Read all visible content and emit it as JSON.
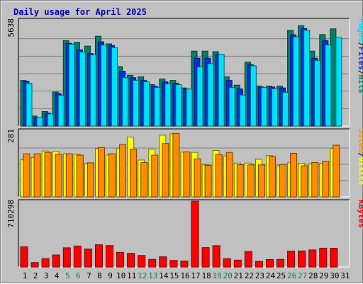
{
  "chart_data": {
    "type": "bar",
    "title": "Daily usage for April 2025",
    "x": [
      "1",
      "2",
      "3",
      "4",
      "5",
      "6",
      "7",
      "8",
      "9",
      "10",
      "11",
      "12",
      "13",
      "14",
      "15",
      "16",
      "17",
      "18",
      "19",
      "20",
      "21",
      "22",
      "23",
      "24",
      "25",
      "26",
      "27",
      "28",
      "29",
      "30",
      "31"
    ],
    "weekend_days": [
      "5",
      "6",
      "12",
      "13",
      "19",
      "20",
      "26",
      "27"
    ],
    "colors": {
      "title": "#0000b0",
      "weekday": "#000000",
      "weekend": "#00806a",
      "hits": "#00806a",
      "files": "#0030e0",
      "pages": "#00e0ff",
      "visits": "#ffff00",
      "sites": "#ff8c00",
      "kbytes": "#ff0000",
      "plot_bg": "#c0c0c0"
    },
    "panels": [
      {
        "name": "requests",
        "max_label": "5638",
        "ymax": 5638,
        "legend": [
          {
            "label": "Pages",
            "color": "#00e0ff"
          },
          {
            "label": "/",
            "color": "#000000"
          },
          {
            "label": "Files",
            "color": "#0030e0"
          },
          {
            "label": "/",
            "color": "#000000"
          },
          {
            "label": "Hits",
            "color": "#00806a"
          }
        ],
        "series": [
          {
            "name": "Hits",
            "color": "#00806a",
            "values": [
              2450,
              540,
              780,
              1830,
              4600,
              4500,
              4300,
              4830,
              4420,
              3200,
              2730,
              2650,
              2230,
              2530,
              2450,
              2050,
              4030,
              4030,
              4000,
              2650,
              2200,
              3440,
              2150,
              2150,
              2150,
              5150,
              5400,
              4030,
              4920,
              5230,
              0
            ]
          },
          {
            "name": "Files",
            "color": "#0030e0",
            "values": [
              2400,
              450,
              700,
              1750,
              4450,
              4100,
              3900,
              4530,
              4330,
              2950,
              2600,
              2450,
              2150,
              2380,
              2300,
              2000,
              3650,
              3650,
              3850,
              2450,
              2000,
              3300,
              2100,
              2100,
              2050,
              4910,
              5240,
              3650,
              4600,
              0,
              0
            ]
          },
          {
            "name": "Pages",
            "color": "#00e0ff",
            "values": [
              2300,
              450,
              650,
              1650,
              4400,
              3980,
              3830,
              4360,
              4220,
              2600,
              2460,
              2380,
              2070,
              2270,
              2230,
              1990,
              3180,
              3360,
              3860,
              2070,
              1670,
              3240,
              2070,
              2000,
              1810,
              4800,
              5150,
              3530,
              4370,
              4760,
              0
            ]
          }
        ]
      },
      {
        "name": "visits",
        "max_label": "281",
        "ymax": 281,
        "legend": [
          {
            "label": "Sites",
            "color": "#ff8c00"
          },
          {
            "label": "/",
            "color": "#000000"
          },
          {
            "label": "Visits",
            "color": "#ffff00"
          }
        ],
        "series": [
          {
            "name": "Visits",
            "color": "#ffff00",
            "values": [
              160,
              170,
              198,
              196,
              186,
              184,
              144,
              208,
              181,
              210,
              258,
              159,
              206,
              266,
              272,
              193,
              192,
              138,
              200,
              176,
              146,
              146,
              162,
              178,
              135,
              147,
              145,
              143,
              144,
              210,
              0
            ]
          },
          {
            "name": "Sites",
            "color": "#ff8c00",
            "values": [
              186,
              186,
              192,
              184,
              186,
              180,
              147,
              213,
              186,
              226,
              206,
              148,
              180,
              230,
              274,
              194,
              164,
              136,
              183,
              192,
              139,
              138,
              138,
              174,
              140,
              188,
              134,
              148,
              154,
              223,
              0
            ]
          }
        ]
      },
      {
        "name": "kbytes",
        "max_label": "710298",
        "ymax": 710298,
        "legend": [
          {
            "label": "KBytes",
            "color": "#ff0000"
          }
        ],
        "series": [
          {
            "name": "KBytes",
            "color": "#ff0000",
            "values": [
              218000,
              48000,
              90000,
              130000,
              207000,
              226000,
              194000,
              240000,
              231000,
              158000,
              147000,
              124000,
              82000,
              110000,
              70000,
              64000,
              710298,
              209000,
              230000,
              90000,
              74000,
              167000,
              61000,
              80000,
              82000,
              172000,
              173000,
              184000,
              203000,
              202000,
              0
            ]
          }
        ]
      }
    ]
  }
}
